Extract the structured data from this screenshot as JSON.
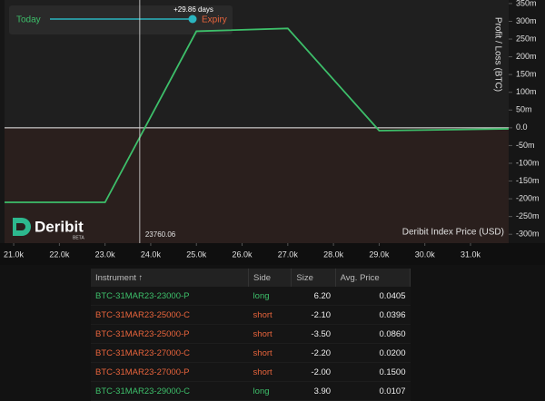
{
  "chart_data": {
    "type": "line",
    "x": [
      20800,
      23000,
      25000,
      27000,
      29000,
      31835
    ],
    "values": [
      -0.21,
      -0.21,
      0.272,
      0.28,
      -0.008,
      -0.003
    ],
    "color": "#3dbf6a",
    "xlim": [
      20800,
      31835
    ],
    "ylim": [
      -0.325,
      0.36
    ],
    "xticks": [
      {
        "value": 21000,
        "label": "21.0k"
      },
      {
        "value": 22000,
        "label": "22.0k"
      },
      {
        "value": 23000,
        "label": "23.0k"
      },
      {
        "value": 24000,
        "label": "24.0k"
      },
      {
        "value": 25000,
        "label": "25.0k"
      },
      {
        "value": 26000,
        "label": "26.0k"
      },
      {
        "value": 27000,
        "label": "27.0k"
      },
      {
        "value": 28000,
        "label": "28.0k"
      },
      {
        "value": 29000,
        "label": "29.0k"
      },
      {
        "value": 30000,
        "label": "30.0k"
      },
      {
        "value": 31000,
        "label": "31.0k"
      }
    ],
    "yticks": [
      {
        "value": 0.35,
        "label": "350m"
      },
      {
        "value": 0.3,
        "label": "300m"
      },
      {
        "value": 0.25,
        "label": "250m"
      },
      {
        "value": 0.2,
        "label": "200m"
      },
      {
        "value": 0.15,
        "label": "150m"
      },
      {
        "value": 0.1,
        "label": "100m"
      },
      {
        "value": 0.05,
        "label": "50m"
      },
      {
        "value": 0,
        "label": "0.0"
      },
      {
        "value": -0.05,
        "label": "-50m"
      },
      {
        "value": -0.1,
        "label": "-100m"
      },
      {
        "value": -0.15,
        "label": "-150m"
      },
      {
        "value": -0.2,
        "label": "-200m"
      },
      {
        "value": -0.25,
        "label": "-250m"
      },
      {
        "value": -0.3,
        "label": "-300m"
      }
    ],
    "grid": false,
    "crosshair_x": 23760.06,
    "x_label": "Deribit Index Price   (USD)",
    "y_label": "Profit / Loss   (BTC)",
    "slider": {
      "start_label": "Today",
      "days_label": "+29.86 days",
      "end_label": "Expiry"
    },
    "brand": "Deribit",
    "brand_badge": "BETA"
  },
  "table": {
    "columns": [
      "Instrument ↑",
      "Side",
      "Size",
      "Avg. Price"
    ],
    "rows": [
      [
        "BTC-31MAR23-23000-P",
        "long",
        "6.20",
        "0.0405"
      ],
      [
        "BTC-31MAR23-25000-C",
        "short",
        "-2.10",
        "0.0396"
      ],
      [
        "BTC-31MAR23-25000-P",
        "short",
        "-3.50",
        "0.0860"
      ],
      [
        "BTC-31MAR23-27000-C",
        "short",
        "-2.20",
        "0.0200"
      ],
      [
        "BTC-31MAR23-27000-P",
        "short",
        "-2.00",
        "0.1500"
      ],
      [
        "BTC-31MAR23-29000-C",
        "long",
        "3.90",
        "0.0107"
      ]
    ],
    "row_colors": [
      "#3dbf6a",
      "#e8643c",
      "#e8643c",
      "#e8643c",
      "#e8643c",
      "#3dbf6a"
    ]
  }
}
